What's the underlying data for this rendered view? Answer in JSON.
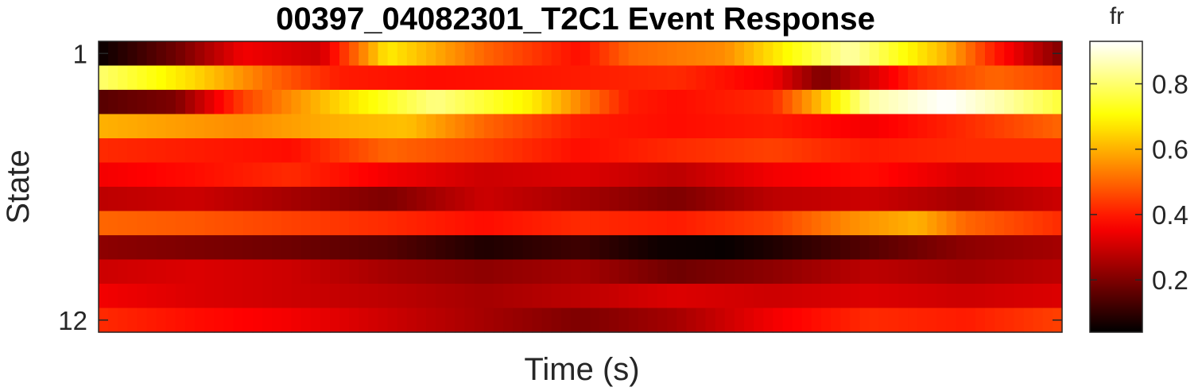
{
  "chart_data": {
    "type": "heatmap",
    "title": "00397_04082301_T2C1 Event Response",
    "xlabel": "Time (s)",
    "ylabel": "State",
    "colormap": "hot",
    "y_categories": [
      1,
      2,
      3,
      4,
      5,
      6,
      7,
      8,
      9,
      10,
      11,
      12
    ],
    "y_tick_labels": [
      "1",
      "12"
    ],
    "x_tick_labels": [],
    "n_time_bins": 100,
    "grid": false,
    "colorbar": {
      "title": "fr",
      "range": [
        0.04,
        0.93
      ],
      "tick_values": [
        0.2,
        0.4,
        0.6,
        0.8
      ],
      "tick_labels": [
        "0.2",
        "0.4",
        "0.6",
        "0.8"
      ],
      "placement": "right"
    },
    "row_profiles": [
      {
        "state": 1,
        "control_times": [
          0,
          8,
          15,
          23,
          30,
          40,
          50,
          55,
          65,
          78,
          88,
          93,
          100
        ],
        "control_values": [
          0.05,
          0.18,
          0.35,
          0.3,
          0.68,
          0.5,
          0.38,
          0.5,
          0.55,
          0.85,
          0.6,
          0.4,
          0.2
        ]
      },
      {
        "state": 2,
        "control_times": [
          0,
          10,
          18,
          25,
          35,
          50,
          60,
          70,
          75,
          85,
          93,
          100
        ],
        "control_values": [
          0.8,
          0.65,
          0.5,
          0.4,
          0.38,
          0.4,
          0.42,
          0.35,
          0.2,
          0.42,
          0.5,
          0.45
        ]
      },
      {
        "state": 3,
        "control_times": [
          0,
          8,
          15,
          25,
          35,
          45,
          55,
          60,
          70,
          75,
          80,
          88,
          94,
          100
        ],
        "control_values": [
          0.15,
          0.2,
          0.45,
          0.65,
          0.82,
          0.68,
          0.4,
          0.38,
          0.42,
          0.62,
          0.85,
          0.93,
          0.85,
          0.75
        ]
      },
      {
        "state": 4,
        "control_times": [
          0,
          15,
          25,
          32,
          40,
          50,
          60,
          70,
          80,
          90,
          100
        ],
        "control_values": [
          0.6,
          0.55,
          0.6,
          0.62,
          0.5,
          0.4,
          0.38,
          0.4,
          0.35,
          0.42,
          0.5
        ]
      },
      {
        "state": 5,
        "control_times": [
          0,
          10,
          20,
          30,
          40,
          50,
          60,
          70,
          80,
          90,
          100
        ],
        "control_values": [
          0.42,
          0.4,
          0.38,
          0.5,
          0.45,
          0.38,
          0.42,
          0.45,
          0.4,
          0.42,
          0.42
        ]
      },
      {
        "state": 6,
        "control_times": [
          0,
          10,
          20,
          30,
          40,
          50,
          60,
          70,
          80,
          90,
          100
        ],
        "control_values": [
          0.35,
          0.38,
          0.42,
          0.35,
          0.3,
          0.32,
          0.28,
          0.35,
          0.38,
          0.32,
          0.35
        ]
      },
      {
        "state": 7,
        "control_times": [
          0,
          10,
          20,
          30,
          40,
          50,
          60,
          70,
          80,
          90,
          100
        ],
        "control_values": [
          0.28,
          0.3,
          0.25,
          0.2,
          0.3,
          0.25,
          0.2,
          0.28,
          0.3,
          0.25,
          0.3
        ]
      },
      {
        "state": 8,
        "control_times": [
          0,
          10,
          20,
          30,
          40,
          50,
          60,
          70,
          78,
          85,
          90,
          100
        ],
        "control_values": [
          0.5,
          0.48,
          0.45,
          0.42,
          0.38,
          0.42,
          0.4,
          0.45,
          0.55,
          0.6,
          0.5,
          0.42
        ]
      },
      {
        "state": 9,
        "control_times": [
          0,
          10,
          20,
          30,
          40,
          50,
          58,
          65,
          70,
          80,
          90,
          100
        ],
        "control_values": [
          0.22,
          0.2,
          0.18,
          0.15,
          0.08,
          0.12,
          0.06,
          0.05,
          0.08,
          0.15,
          0.22,
          0.25
        ]
      },
      {
        "state": 10,
        "control_times": [
          0,
          10,
          20,
          30,
          40,
          50,
          60,
          70,
          80,
          90,
          100
        ],
        "control_values": [
          0.3,
          0.32,
          0.3,
          0.25,
          0.22,
          0.25,
          0.18,
          0.22,
          0.28,
          0.25,
          0.28
        ]
      },
      {
        "state": 11,
        "control_times": [
          0,
          10,
          20,
          30,
          40,
          50,
          60,
          70,
          80,
          90,
          100
        ],
        "control_values": [
          0.35,
          0.32,
          0.3,
          0.28,
          0.25,
          0.28,
          0.32,
          0.3,
          0.32,
          0.3,
          0.32
        ]
      },
      {
        "state": 12,
        "control_times": [
          0,
          10,
          20,
          30,
          40,
          50,
          60,
          70,
          80,
          90,
          100
        ],
        "control_values": [
          0.42,
          0.38,
          0.35,
          0.3,
          0.25,
          0.2,
          0.25,
          0.35,
          0.42,
          0.4,
          0.45
        ]
      }
    ]
  }
}
